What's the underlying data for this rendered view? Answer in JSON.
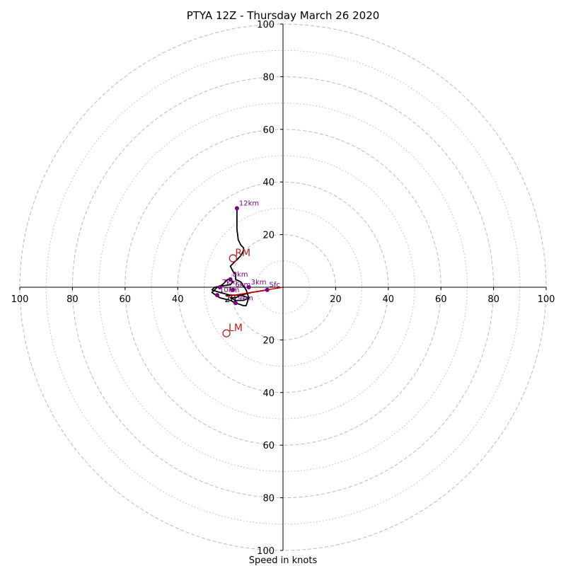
{
  "chart_data": {
    "type": "hodograph",
    "title": "PTYA 12Z - Thursday March 26 2020",
    "xlabel": "Speed in knots",
    "speed_unit": "knots",
    "rings_major": [
      20,
      40,
      60,
      80,
      100
    ],
    "rings_minor": [
      10,
      30,
      50,
      70,
      90
    ],
    "max_speed": 100,
    "x_tick_labels": [
      "100",
      "80",
      "60",
      "40",
      "20",
      "20",
      "40",
      "60",
      "80",
      "100"
    ],
    "y_tick_labels": [
      "100",
      "80",
      "60",
      "40",
      "20",
      "20",
      "40",
      "60",
      "80",
      "100"
    ],
    "hodograph_trace": [
      [
        -6,
        -1
      ],
      [
        -9,
        -1.5
      ],
      [
        -12,
        -2
      ],
      [
        -14,
        -2.5
      ],
      [
        -16,
        -3
      ],
      [
        -18,
        -4
      ],
      [
        -20,
        -4
      ],
      [
        -18,
        -5
      ],
      [
        -15,
        -5
      ],
      [
        -13,
        -4
      ],
      [
        -16,
        -3
      ],
      [
        -20,
        -3
      ],
      [
        -24,
        -2
      ],
      [
        -27,
        -1
      ],
      [
        -26,
        0
      ],
      [
        -23,
        0.5
      ],
      [
        -20,
        1
      ],
      [
        -19,
        2
      ],
      [
        -20,
        3
      ],
      [
        -21,
        3
      ],
      [
        -22,
        2
      ],
      [
        -23,
        1
      ],
      [
        -25,
        0
      ],
      [
        -27,
        -2
      ],
      [
        -24,
        -4
      ],
      [
        -20,
        -5
      ],
      [
        -18,
        -6
      ],
      [
        -15,
        -7
      ],
      [
        -14,
        -7
      ],
      [
        -13,
        -4
      ],
      [
        -14,
        -1
      ],
      [
        -16,
        2
      ],
      [
        -18,
        3
      ],
      [
        -18,
        5
      ],
      [
        -19,
        6
      ],
      [
        -20,
        8
      ],
      [
        -18,
        10
      ],
      [
        -16,
        12
      ],
      [
        -15,
        14
      ],
      [
        -15,
        15
      ],
      [
        -16,
        16
      ],
      [
        -17,
        18
      ],
      [
        -17.5,
        22
      ],
      [
        -17.5,
        27
      ],
      [
        -17.5,
        30
      ]
    ],
    "height_points": [
      {
        "label": "Sfc",
        "u": -6,
        "v": -1
      },
      {
        "label": "3km",
        "u": -13,
        "v": 0
      },
      {
        "label": "6km",
        "u": -19,
        "v": -1
      },
      {
        "label": "7km",
        "u": -24,
        "v": 0
      },
      {
        "label": "8km",
        "u": -20,
        "v": 3
      },
      {
        "label": "9km",
        "u": -18,
        "v": -6
      },
      {
        "label": "10km",
        "u": -25,
        "v": -3
      },
      {
        "label": "12km",
        "u": -17.5,
        "v": 30
      }
    ],
    "storm_motion": [
      {
        "label": "RM",
        "u": -19,
        "v": 11
      },
      {
        "label": "LM",
        "u": -21.5,
        "v": -17.5
      }
    ],
    "shear_vector": {
      "from_u": -21.5,
      "from_v": -3.5,
      "to_u": 0,
      "to_v": 0
    },
    "colors": {
      "trace": "#000000",
      "height_points": "#800080",
      "storm_motion": "#b22222",
      "shear_vector": "#cc0000",
      "rings": "#bbbbbb"
    }
  }
}
